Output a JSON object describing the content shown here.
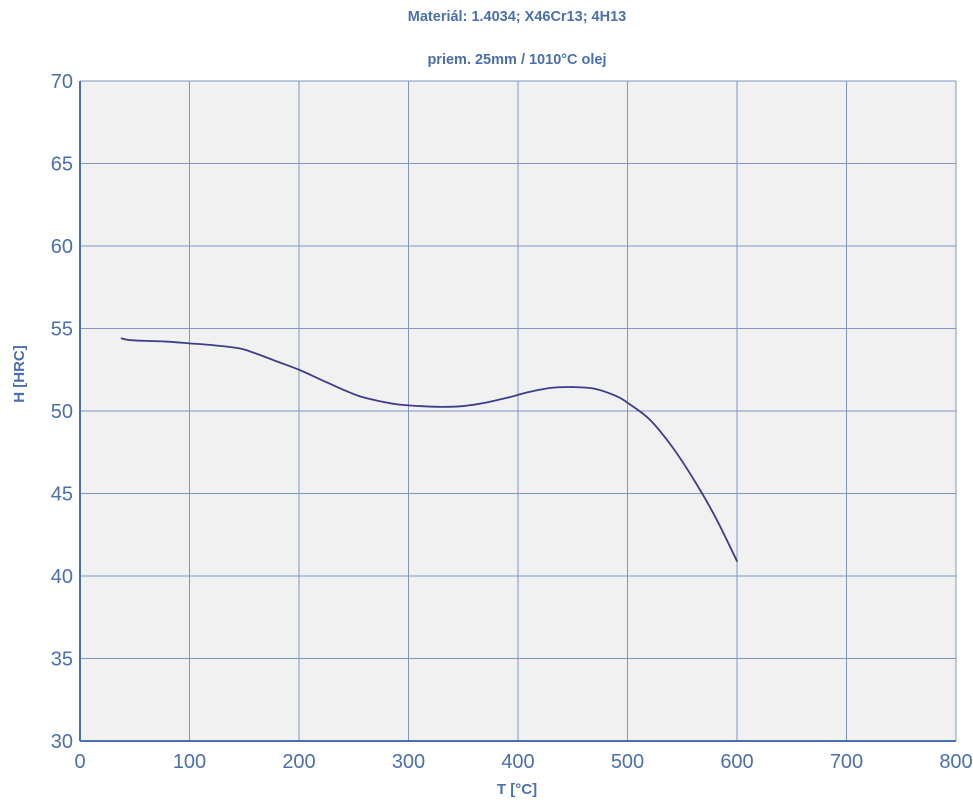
{
  "chart_data": {
    "type": "line",
    "title": "Materiál: 1.4034; X46Cr13; 4H13",
    "subtitle": "priem. 25mm / 1010°C olej",
    "xlabel": "T [°C]",
    "ylabel": "H [HRC]",
    "xlim": [
      0,
      800
    ],
    "ylim": [
      30,
      70
    ],
    "xticks": [
      "0",
      "100",
      "200",
      "300",
      "400",
      "500",
      "600",
      "700",
      "800"
    ],
    "yticks": [
      "30",
      "35",
      "40",
      "45",
      "50",
      "55",
      "60",
      "65",
      "70"
    ],
    "grid": true,
    "colors": {
      "line": "#3d3d8a",
      "grid": "#7f97c4",
      "axis": "#4a6fb3",
      "plot_bg": "#f1f1f1",
      "text": "#4a6fb3"
    },
    "series": [
      {
        "x": [
          38,
          45,
          60,
          80,
          100,
          120,
          145,
          160,
          180,
          200,
          220,
          240,
          255,
          270,
          290,
          310,
          330,
          350,
          370,
          390,
          410,
          430,
          450,
          470,
          490,
          500,
          520,
          540,
          560,
          580,
          600
        ],
        "y": [
          54.4,
          54.3,
          54.25,
          54.2,
          54.1,
          54.0,
          53.8,
          53.5,
          53.0,
          52.5,
          51.9,
          51.3,
          50.9,
          50.65,
          50.4,
          50.3,
          50.25,
          50.3,
          50.5,
          50.8,
          51.15,
          51.4,
          51.45,
          51.35,
          50.9,
          50.5,
          49.5,
          47.9,
          45.9,
          43.6,
          40.9
        ]
      }
    ]
  }
}
